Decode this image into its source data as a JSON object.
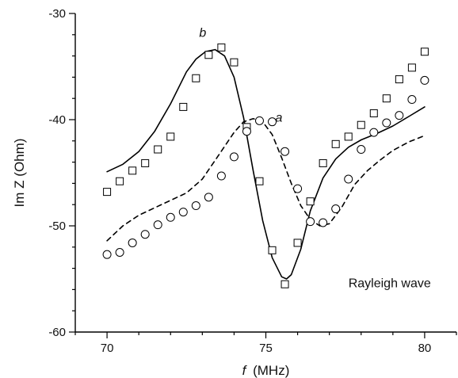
{
  "chart_data": {
    "type": "scatter",
    "title": "",
    "xlabel": {
      "var": "f",
      "unit": "(MHz)"
    },
    "ylabel": "Im Z (Ohm)",
    "xlim": [
      69,
      81
    ],
    "ylim": [
      -60,
      -30
    ],
    "x_ticks": [
      70,
      75,
      80
    ],
    "y_ticks": [
      -60,
      -50,
      -40,
      -30
    ],
    "x_tick_labels": [
      "70",
      "75",
      "80"
    ],
    "y_tick_labels": [
      "-60",
      "-50",
      "-40",
      "-30"
    ],
    "grid": false,
    "annotations": [
      {
        "text": "b",
        "x": 72.9,
        "y": -32.2,
        "italic": true
      },
      {
        "text": "a",
        "x": 75.3,
        "y": -40.2,
        "italic": true
      },
      {
        "text": "Rayleigh wave",
        "x": 77.6,
        "y": -55.8,
        "italic": false
      }
    ],
    "series": [
      {
        "marker": "square",
        "style": "markers",
        "x": [
          70.0,
          70.4,
          70.8,
          71.2,
          71.6,
          72.0,
          72.4,
          72.8,
          73.2,
          73.6,
          74.0,
          74.4,
          74.8,
          75.2,
          75.6,
          76.0,
          76.4,
          76.8,
          77.2,
          77.6,
          78.0,
          78.4,
          78.8,
          79.2,
          79.6,
          80.0
        ],
        "y": [
          -46.8,
          -45.8,
          -44.8,
          -44.1,
          -42.8,
          -41.6,
          -38.8,
          -36.1,
          -33.9,
          -33.2,
          -34.6,
          -40.7,
          -45.8,
          -52.3,
          -55.5,
          -51.6,
          -47.7,
          -44.1,
          -42.3,
          -41.6,
          -40.5,
          -39.4,
          -38.0,
          -36.2,
          -35.1,
          -33.6
        ]
      },
      {
        "marker": "circle",
        "style": "markers",
        "x": [
          70.0,
          70.4,
          70.8,
          71.2,
          71.6,
          72.0,
          72.4,
          72.8,
          73.2,
          73.6,
          74.0,
          74.4,
          74.8,
          75.2,
          75.6,
          76.0,
          76.4,
          76.8,
          77.2,
          77.6,
          78.0,
          78.4,
          78.8,
          79.2,
          79.6,
          80.0
        ],
        "y": [
          -52.7,
          -52.5,
          -51.6,
          -50.8,
          -49.9,
          -49.2,
          -48.7,
          -48.1,
          -47.3,
          -45.3,
          -43.5,
          -41.1,
          -40.1,
          -40.2,
          -43.0,
          -46.5,
          -49.6,
          -49.7,
          -48.4,
          -45.6,
          -42.8,
          -41.2,
          -40.3,
          -39.6,
          -38.1,
          -36.3
        ]
      },
      {
        "style": "solid",
        "label": "b",
        "x": [
          70.0,
          70.5,
          71.0,
          71.5,
          72.0,
          72.5,
          72.8,
          73.1,
          73.4,
          73.7,
          74.0,
          74.3,
          74.6,
          74.9,
          75.2,
          75.5,
          75.65,
          75.8,
          76.1,
          76.4,
          76.8,
          77.2,
          77.6,
          78.0,
          78.5,
          79.0,
          79.5,
          80.0
        ],
        "y": [
          -44.9,
          -44.2,
          -43.0,
          -41.1,
          -38.5,
          -35.5,
          -34.3,
          -33.6,
          -33.4,
          -34.0,
          -36.0,
          -39.8,
          -44.8,
          -49.5,
          -53.0,
          -54.8,
          -55.0,
          -54.6,
          -52.2,
          -48.6,
          -45.5,
          -43.7,
          -42.6,
          -41.9,
          -41.3,
          -40.6,
          -39.7,
          -38.8
        ]
      },
      {
        "style": "dashed",
        "label": "a",
        "x": [
          70.0,
          70.5,
          71.0,
          71.5,
          72.0,
          72.5,
          73.0,
          73.5,
          74.0,
          74.3,
          74.6,
          74.9,
          75.2,
          75.5,
          75.8,
          76.1,
          76.4,
          76.7,
          77.0,
          77.4,
          77.8,
          78.2,
          78.6,
          79.0,
          79.5,
          80.0
        ],
        "y": [
          -51.4,
          -50.0,
          -49.0,
          -48.3,
          -47.6,
          -46.9,
          -45.6,
          -43.4,
          -41.2,
          -40.2,
          -39.9,
          -40.2,
          -41.4,
          -43.6,
          -46.0,
          -48.1,
          -49.4,
          -50.0,
          -49.8,
          -48.2,
          -46.1,
          -44.8,
          -43.8,
          -42.9,
          -42.1,
          -41.5
        ]
      }
    ]
  }
}
